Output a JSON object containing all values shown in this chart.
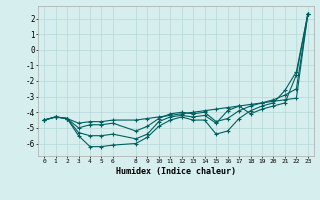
{
  "xlabel": "Humidex (Indice chaleur)",
  "x": [
    0,
    1,
    2,
    3,
    4,
    5,
    6,
    8,
    9,
    10,
    11,
    12,
    13,
    14,
    15,
    16,
    17,
    18,
    19,
    20,
    21,
    22,
    23
  ],
  "line1": [
    -4.5,
    -4.3,
    -4.4,
    -5.5,
    -6.2,
    -6.2,
    -6.1,
    -6.0,
    -5.6,
    -4.9,
    -4.5,
    -4.3,
    -4.5,
    -4.5,
    -5.4,
    -5.2,
    -4.4,
    -3.9,
    -3.6,
    -3.4,
    -2.6,
    -1.4,
    2.3
  ],
  "line2": [
    -4.5,
    -4.3,
    -4.4,
    -5.0,
    -4.8,
    -4.8,
    -4.7,
    -5.2,
    -4.9,
    -4.4,
    -4.1,
    -4.0,
    -4.1,
    -4.0,
    -4.6,
    -4.4,
    -3.9,
    -3.6,
    -3.4,
    -3.2,
    -2.9,
    -2.5,
    2.3
  ],
  "line3": [
    -4.5,
    -4.3,
    -4.4,
    -4.7,
    -4.6,
    -4.6,
    -4.5,
    -4.5,
    -4.4,
    -4.3,
    -4.2,
    -4.1,
    -4.0,
    -3.9,
    -3.8,
    -3.7,
    -3.6,
    -3.5,
    -3.4,
    -3.3,
    -3.2,
    -3.1,
    2.3
  ],
  "line4": [
    -4.5,
    -4.3,
    -4.4,
    -5.3,
    -5.5,
    -5.5,
    -5.4,
    -5.7,
    -5.4,
    -4.6,
    -4.3,
    -4.2,
    -4.3,
    -4.2,
    -4.7,
    -3.9,
    -3.6,
    -4.1,
    -3.8,
    -3.6,
    -3.4,
    -1.6,
    2.3
  ],
  "bg_color": "#d6eeee",
  "line_color": "#006060",
  "grid_color": "#b8d8d8",
  "ylim": [
    -6.8,
    2.8
  ],
  "yticks": [
    -6,
    -5,
    -4,
    -3,
    -2,
    -1,
    0,
    1,
    2
  ],
  "xticks": [
    0,
    1,
    2,
    3,
    4,
    5,
    6,
    8,
    9,
    10,
    11,
    12,
    13,
    14,
    15,
    16,
    17,
    18,
    19,
    20,
    21,
    22,
    23
  ]
}
